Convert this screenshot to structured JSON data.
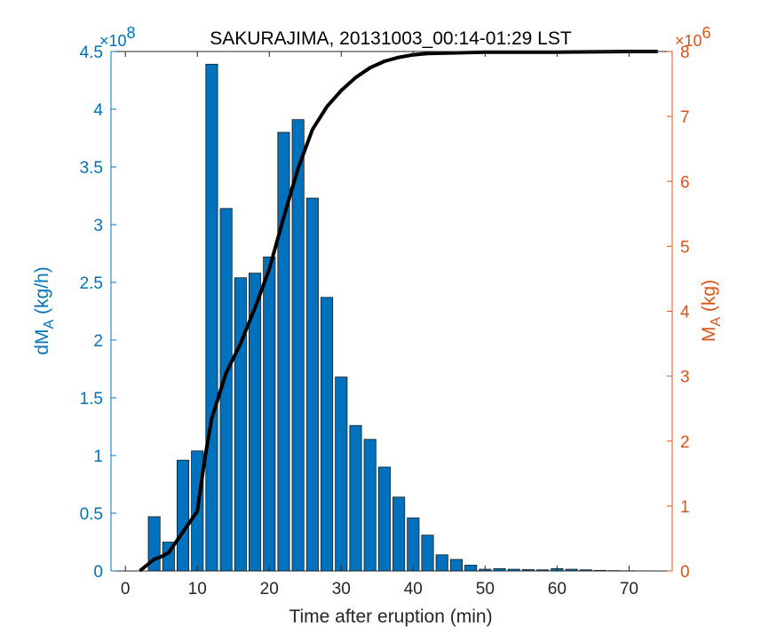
{
  "chart_data": {
    "type": "bar",
    "title": "SAKURAJIMA, 20131003_00:14-01:29 LST",
    "xlabel": "Time after eruption (min)",
    "ylabel_left": {
      "main": "dM",
      "sub": "A",
      "unit": " (kg/h)"
    },
    "ylabel_right": {
      "main": "M",
      "sub": "A",
      "unit": " (kg)"
    },
    "left_multiplier": {
      "base": "×10",
      "exp": "8"
    },
    "right_multiplier": {
      "base": "×10",
      "exp": "6"
    },
    "xlim": [
      -2,
      76
    ],
    "ylim_left": [
      0,
      4.5
    ],
    "ylim_right": [
      0,
      8
    ],
    "xticks": [
      0,
      10,
      20,
      30,
      40,
      50,
      60,
      70
    ],
    "yticks_left": [
      "0",
      "0.5",
      "1",
      "1.5",
      "2",
      "2.5",
      "3",
      "3.5",
      "4",
      "4.5"
    ],
    "yticks_right": [
      "0",
      "1",
      "2",
      "3",
      "4",
      "5",
      "6",
      "7",
      "8"
    ],
    "grid": false,
    "colors": {
      "bar": "#0072BD",
      "left_axis": "#0072BD",
      "right_axis": "#D95319",
      "line": "#000000"
    },
    "series": [
      {
        "name": "dMA",
        "axis": "left",
        "x": [
          2,
          4,
          6,
          8,
          10,
          12,
          14,
          16,
          18,
          20,
          22,
          24,
          26,
          28,
          30,
          32,
          34,
          36,
          38,
          40,
          42,
          44,
          46,
          48,
          50,
          52,
          54,
          56,
          58,
          60,
          62,
          64,
          66,
          68,
          70,
          72,
          74
        ],
        "values": [
          0,
          0.47,
          0.25,
          0.96,
          1.04,
          4.39,
          3.14,
          2.54,
          2.58,
          2.72,
          3.8,
          3.91,
          3.23,
          2.37,
          1.68,
          1.26,
          1.14,
          0.9,
          0.64,
          0.46,
          0.31,
          0.14,
          0.1,
          0.05,
          0.015,
          0.02,
          0.015,
          0.012,
          0.01,
          0.02,
          0.015,
          0.01,
          0.005,
          0.003,
          0.002,
          0.001,
          0
        ]
      },
      {
        "name": "MA",
        "axis": "right",
        "type": "line",
        "x": [
          2,
          4,
          5,
          6,
          8,
          10,
          11,
          12,
          13,
          14,
          16,
          18,
          20,
          22,
          24,
          26,
          28,
          30,
          32,
          34,
          36,
          38,
          40,
          42,
          46,
          50,
          60,
          70,
          74
        ],
        "values": [
          0,
          0.18,
          0.22,
          0.28,
          0.6,
          0.92,
          1.7,
          2.35,
          2.7,
          3.05,
          3.5,
          4.05,
          4.65,
          5.45,
          6.2,
          6.8,
          7.15,
          7.4,
          7.6,
          7.75,
          7.85,
          7.91,
          7.95,
          7.97,
          7.98,
          7.99,
          7.99,
          8.0,
          8.0
        ]
      }
    ]
  }
}
